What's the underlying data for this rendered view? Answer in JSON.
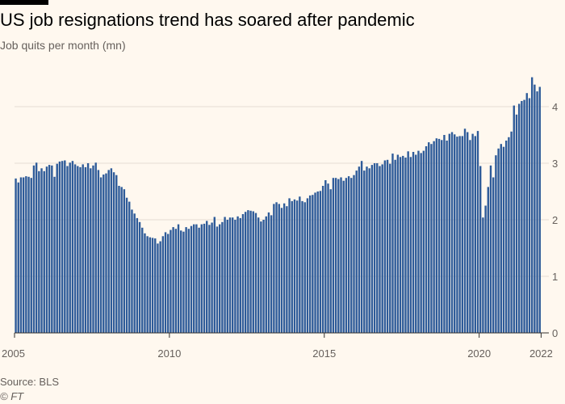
{
  "header": {
    "title": "US job resignations trend has soared after pandemic",
    "subtitle": "Job quits per month (mn)"
  },
  "footer": {
    "source": "Source: BLS",
    "credit": "© FT"
  },
  "colors": {
    "bar": "#2e5b99",
    "background": "#fff8ef",
    "grid": "#e6ddd3",
    "baseline": "#33302e"
  },
  "chart_data": {
    "type": "bar",
    "title": "US job resignations trend has soared after pandemic",
    "subtitle": "Job quits per month (mn)",
    "x_start": "2005-01",
    "x_end": "2022-03",
    "x_ticks": [
      "2005",
      "2010",
      "2015",
      "2020",
      "2022"
    ],
    "y_ticks": [
      0,
      1,
      2,
      3,
      4
    ],
    "ylim": [
      0,
      4.6
    ],
    "grid": true,
    "y_axis_position": "right",
    "series": [
      {
        "values": [
          2.73,
          2.66,
          2.75,
          2.75,
          2.77,
          2.76,
          2.74,
          2.96,
          3.01,
          2.86,
          2.91,
          2.86,
          2.94,
          2.97,
          2.96,
          2.76,
          2.99,
          3.03,
          3.04,
          3.05,
          2.95,
          3.01,
          3.04,
          2.98,
          2.95,
          2.93,
          2.98,
          2.93,
          3.0,
          2.91,
          2.96,
          3.01,
          2.88,
          2.75,
          2.8,
          2.82,
          2.88,
          2.91,
          2.84,
          2.79,
          2.6,
          2.58,
          2.54,
          2.39,
          2.32,
          2.18,
          2.11,
          2.03,
          1.96,
          1.86,
          1.76,
          1.71,
          1.69,
          1.68,
          1.67,
          1.58,
          1.62,
          1.71,
          1.78,
          1.75,
          1.82,
          1.87,
          1.84,
          1.92,
          1.81,
          1.79,
          1.87,
          1.84,
          1.89,
          1.92,
          1.92,
          1.86,
          1.92,
          1.93,
          1.98,
          1.91,
          1.95,
          2.05,
          1.88,
          1.92,
          1.96,
          2.05,
          2.0,
          2.04,
          2.04,
          2.0,
          2.06,
          2.03,
          2.1,
          2.14,
          2.17,
          2.16,
          2.15,
          2.12,
          2.04,
          1.97,
          2.0,
          2.06,
          2.13,
          2.08,
          2.28,
          2.31,
          2.28,
          2.21,
          2.29,
          2.24,
          2.38,
          2.33,
          2.36,
          2.34,
          2.41,
          2.33,
          2.31,
          2.38,
          2.43,
          2.44,
          2.48,
          2.5,
          2.51,
          2.6,
          2.7,
          2.64,
          2.54,
          2.74,
          2.74,
          2.72,
          2.75,
          2.69,
          2.74,
          2.77,
          2.74,
          2.79,
          2.87,
          2.94,
          3.04,
          2.87,
          2.94,
          2.91,
          2.97,
          3.0,
          3.0,
          2.95,
          2.98,
          3.05,
          3.06,
          2.99,
          3.17,
          3.06,
          3.15,
          3.11,
          3.13,
          3.1,
          3.21,
          3.11,
          3.2,
          3.15,
          3.22,
          3.18,
          3.22,
          3.3,
          3.37,
          3.34,
          3.39,
          3.44,
          3.43,
          3.41,
          3.5,
          3.4,
          3.52,
          3.55,
          3.51,
          3.47,
          3.48,
          3.48,
          3.61,
          3.55,
          3.41,
          3.52,
          3.48,
          3.57,
          2.95,
          2.04,
          2.25,
          2.58,
          2.96,
          2.75,
          3.14,
          3.26,
          3.34,
          3.29,
          3.4,
          3.46,
          3.56,
          4.02,
          3.86,
          4.05,
          4.1,
          4.12,
          4.24,
          4.15,
          4.52,
          4.39,
          4.27,
          4.35
        ]
      }
    ]
  }
}
